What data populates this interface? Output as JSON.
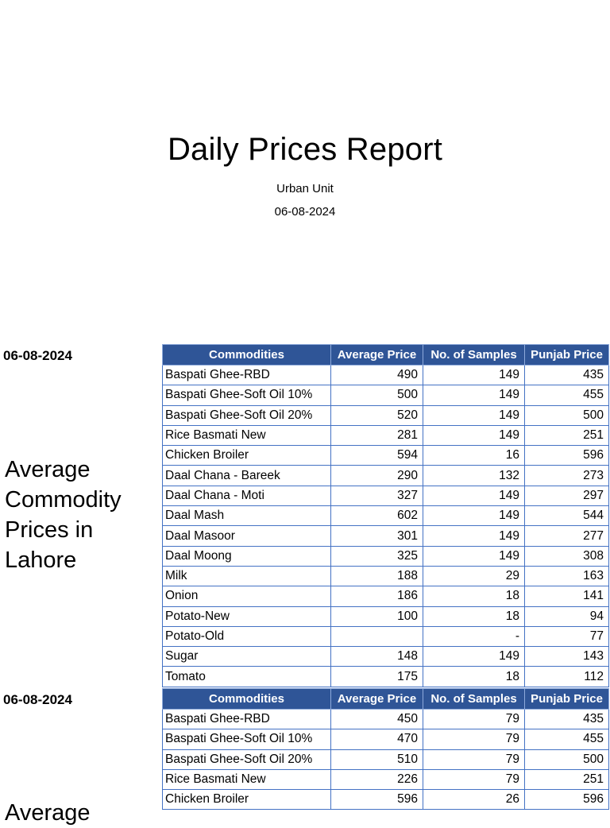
{
  "report": {
    "title": "Daily Prices Report",
    "organization": "Urban Unit",
    "date": "06-08-2024"
  },
  "sections": [
    {
      "date": "06-08-2024",
      "heading": "Average Commodity Prices in Lahore",
      "columns": [
        "Commodities",
        "Average Price",
        "No. of Samples",
        "Punjab Price"
      ],
      "rows": [
        {
          "name": "Baspati Ghee-RBD",
          "avg": "490",
          "samples": "149",
          "punjab": "435"
        },
        {
          "name": "Baspati Ghee-Soft Oil 10%",
          "avg": "500",
          "samples": "149",
          "punjab": "455"
        },
        {
          "name": "Baspati Ghee-Soft Oil 20%",
          "avg": "520",
          "samples": "149",
          "punjab": "500"
        },
        {
          "name": "Rice Basmati New",
          "avg": "281",
          "samples": "149",
          "punjab": "251"
        },
        {
          "name": "Chicken Broiler",
          "avg": "594",
          "samples": "16",
          "punjab": "596"
        },
        {
          "name": "Daal Chana - Bareek",
          "avg": "290",
          "samples": "132",
          "punjab": "273"
        },
        {
          "name": "Daal Chana - Moti",
          "avg": "327",
          "samples": "149",
          "punjab": "297"
        },
        {
          "name": "Daal Mash",
          "avg": "602",
          "samples": "149",
          "punjab": "544"
        },
        {
          "name": "Daal Masoor",
          "avg": "301",
          "samples": "149",
          "punjab": "277"
        },
        {
          "name": "Daal Moong",
          "avg": "325",
          "samples": "149",
          "punjab": "308"
        },
        {
          "name": "Milk",
          "avg": "188",
          "samples": "29",
          "punjab": "163"
        },
        {
          "name": "Onion",
          "avg": "186",
          "samples": "18",
          "punjab": "141"
        },
        {
          "name": "Potato-New",
          "avg": "100",
          "samples": "18",
          "punjab": "94"
        },
        {
          "name": "Potato-Old",
          "avg": "",
          "samples": "-",
          "punjab": "77"
        },
        {
          "name": "Sugar",
          "avg": "148",
          "samples": "149",
          "punjab": "143"
        },
        {
          "name": "Tomato",
          "avg": "175",
          "samples": "18",
          "punjab": "112"
        }
      ]
    },
    {
      "date": "06-08-2024",
      "heading": "Average",
      "columns": [
        "Commodities",
        "Average Price",
        "No. of Samples",
        "Punjab Price"
      ],
      "rows": [
        {
          "name": "Baspati Ghee-RBD",
          "avg": "450",
          "samples": "79",
          "punjab": "435"
        },
        {
          "name": "Baspati Ghee-Soft Oil 10%",
          "avg": "470",
          "samples": "79",
          "punjab": "455"
        },
        {
          "name": "Baspati Ghee-Soft Oil 20%",
          "avg": "510",
          "samples": "79",
          "punjab": "500"
        },
        {
          "name": "Rice Basmati New",
          "avg": "226",
          "samples": "79",
          "punjab": "251"
        },
        {
          "name": "Chicken Broiler",
          "avg": "596",
          "samples": "26",
          "punjab": "596"
        }
      ]
    }
  ]
}
